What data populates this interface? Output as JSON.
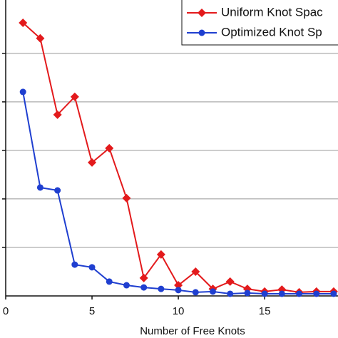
{
  "chart_data": {
    "type": "line",
    "xlabel": "Number of Free Knots",
    "x": [
      1,
      2,
      3,
      4,
      5,
      6,
      7,
      8,
      9,
      10,
      11,
      12,
      13,
      14,
      15,
      16,
      17,
      18,
      19
    ],
    "series": [
      {
        "name": "Uniform Knot Spac",
        "color": "#e31a1c",
        "marker": "diamond",
        "values": [
          11.26,
          10.62,
          7.47,
          8.21,
          5.5,
          6.09,
          4.03,
          0.74,
          1.71,
          0.44,
          1.0,
          0.29,
          0.59,
          0.29,
          0.18,
          0.26,
          0.15,
          0.18,
          0.18
        ]
      },
      {
        "name": "Optimized Knot Sp",
        "color": "#1f3fd0",
        "marker": "circle",
        "values": [
          8.41,
          4.47,
          4.35,
          1.29,
          1.18,
          0.59,
          0.44,
          0.35,
          0.29,
          0.24,
          0.15,
          0.18,
          0.09,
          0.12,
          0.09,
          0.09,
          0.09,
          0.09,
          0.09
        ]
      }
    ],
    "xlim": [
      0,
      19.25
    ],
    "xticks": [
      0,
      5,
      10,
      15
    ],
    "ylim": [
      0,
      12.2
    ],
    "ygrid": [
      2,
      4,
      6,
      8,
      10
    ],
    "grid": true
  }
}
